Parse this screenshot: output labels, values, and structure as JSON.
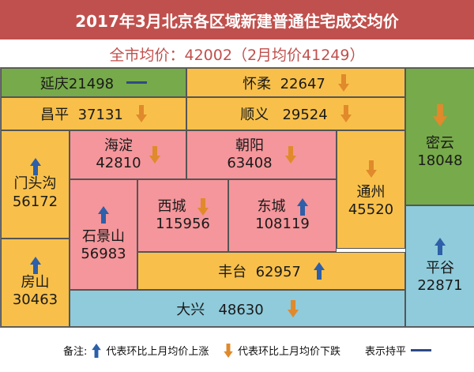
{
  "header": {
    "title": "2017年3月北京各区域新建普通住宅成交均价"
  },
  "subtitle": {
    "text": "全市均价：42002（2月均价41249）"
  },
  "districts": {
    "yanqing": {
      "name": "延庆",
      "price": "21498",
      "trend": "flat"
    },
    "huairou": {
      "name": "怀柔",
      "price": "22647",
      "trend": "down"
    },
    "miyun": {
      "name": "密云",
      "price": "18048",
      "trend": "down"
    },
    "changping": {
      "name": "昌平",
      "price": "37131",
      "trend": "down"
    },
    "shunyi": {
      "name": "顺义",
      "price": "29524",
      "trend": "down"
    },
    "mentougou": {
      "name": "门头沟",
      "price": "56172",
      "trend": "up"
    },
    "haidian": {
      "name": "海淀",
      "price": "42810",
      "trend": "down"
    },
    "chaoyang": {
      "name": "朝阳",
      "price": "63408",
      "trend": "down"
    },
    "tongzhou": {
      "name": "通州",
      "price": "45520",
      "trend": "down"
    },
    "shijingshan": {
      "name": "石景山",
      "price": "56983",
      "trend": "up"
    },
    "xicheng": {
      "name": "西城",
      "price": "115956",
      "trend": "down"
    },
    "dongcheng": {
      "name": "东城",
      "price": "108119",
      "trend": "up"
    },
    "fangshan": {
      "name": "房山",
      "price": "30463",
      "trend": "up"
    },
    "pinggu": {
      "name": "平谷",
      "price": "22871",
      "trend": "up"
    },
    "fengtai": {
      "name": "丰台",
      "price": "62957",
      "trend": "up"
    },
    "daxing": {
      "name": "大兴",
      "price": "48630",
      "trend": "down"
    }
  },
  "legend": {
    "note_label": "备注:",
    "up_label": "代表环比上月均价上涨",
    "down_label": "代表环比上月均价下跌",
    "flat_label": "表示持平"
  },
  "colors": {
    "header": "#c0504d",
    "green": "#77aa4a",
    "orange": "#f8c04a",
    "pink": "#f4969b",
    "blue": "#8fcbdb",
    "arrow_up": "#2e5fa8",
    "arrow_down": "#e08a2c",
    "flat": "#2e4a87"
  }
}
